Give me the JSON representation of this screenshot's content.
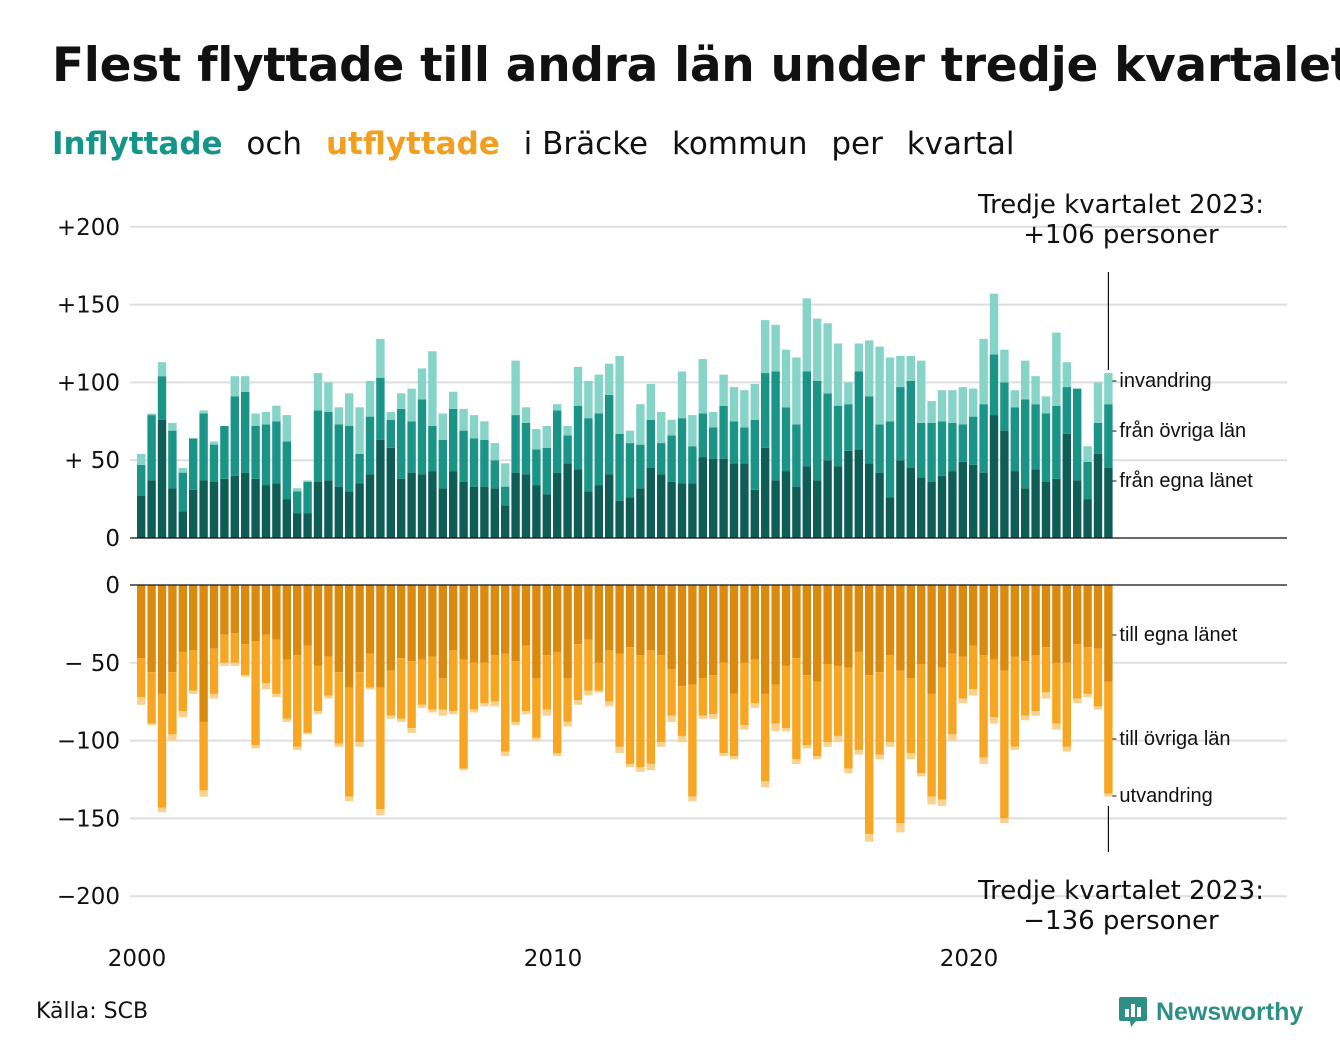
{
  "title": "Flest flyttade till andra län under tredje kvartalet",
  "subtitle": {
    "part1": "Inflyttade",
    "part2": "och",
    "part3": "utflyttade",
    "part4": "i Bräcke",
    "part5": "kommun",
    "part6": "per",
    "part7": "kvartal"
  },
  "annotation_top": {
    "line1": "Tredje kvartalet 2023:",
    "line2": "+106 personer"
  },
  "annotation_bottom": {
    "line1": "Tredje kvartalet 2023:",
    "line2": "−136 personer"
  },
  "source": "Källa: SCB",
  "logo": "Newsworthy",
  "colors": {
    "inflyttade_accent": "#14958a",
    "utflyttade_accent": "#f29e1e",
    "in_egna": "#0e5e57",
    "in_ovriga": "#1b9488",
    "in_invandring": "#86d3c8",
    "ut_egna": "#d98a0f",
    "ut_ovriga": "#f7a623",
    "ut_utvandring": "#fad28e"
  },
  "chart_data": [
    {
      "type": "bar",
      "stacked": true,
      "title": "Inflyttade",
      "x_start": "2000 Q1",
      "frequency": "quarter",
      "x_tick_labels": [
        "2000",
        "2010",
        "2020"
      ],
      "y_tick_labels": [
        "0",
        "+ 50",
        "+100",
        "+150",
        "+200"
      ],
      "ylim": [
        0,
        200
      ],
      "grid": true,
      "series": [
        {
          "name": "från egna länet",
          "values": [
            27,
            37,
            76,
            32,
            17,
            31,
            37,
            36,
            38,
            40,
            42,
            38,
            34,
            35,
            25,
            16,
            16,
            36,
            37,
            33,
            30,
            35,
            41,
            63,
            58,
            38,
            42,
            41,
            43,
            32,
            43,
            36,
            33,
            33,
            32,
            21,
            42,
            41,
            34,
            28,
            42,
            48,
            44,
            30,
            34,
            41,
            24,
            26,
            32,
            45,
            41,
            36,
            35,
            35,
            52,
            51,
            51,
            48,
            48,
            31,
            58,
            37,
            43,
            33,
            46,
            37,
            50,
            46,
            56,
            57,
            48,
            42,
            26,
            50,
            45,
            39,
            36,
            40,
            43,
            49,
            47,
            42,
            79,
            69,
            43,
            32,
            44,
            36,
            38,
            67,
            37,
            25,
            54,
            45
          ]
        },
        {
          "name": "från övriga län",
          "values": [
            20,
            42,
            28,
            37,
            25,
            33,
            43,
            24,
            34,
            51,
            52,
            34,
            39,
            40,
            37,
            14,
            20,
            46,
            44,
            40,
            42,
            19,
            37,
            40,
            18,
            45,
            33,
            48,
            29,
            31,
            40,
            33,
            31,
            30,
            18,
            12,
            37,
            33,
            23,
            30,
            40,
            18,
            41,
            47,
            46,
            51,
            43,
            35,
            28,
            31,
            20,
            30,
            42,
            24,
            28,
            20,
            34,
            27,
            23,
            45,
            48,
            70,
            41,
            40,
            61,
            64,
            43,
            39,
            30,
            50,
            43,
            31,
            49,
            47,
            56,
            35,
            38,
            35,
            31,
            24,
            31,
            44,
            39,
            31,
            41,
            57,
            42,
            44,
            47,
            30,
            59,
            24,
            20,
            41
          ]
        },
        {
          "name": "invandring",
          "values": [
            7,
            1,
            9,
            5,
            3,
            0,
            2,
            2,
            0,
            13,
            10,
            8,
            8,
            10,
            17,
            2,
            1,
            24,
            19,
            11,
            21,
            30,
            23,
            25,
            5,
            10,
            21,
            20,
            48,
            17,
            11,
            14,
            15,
            12,
            11,
            15,
            35,
            10,
            13,
            14,
            4,
            6,
            25,
            24,
            25,
            20,
            50,
            8,
            26,
            23,
            20,
            10,
            30,
            20,
            35,
            10,
            20,
            22,
            24,
            23,
            34,
            30,
            37,
            43,
            47,
            40,
            45,
            40,
            14,
            18,
            36,
            50,
            41,
            20,
            16,
            40,
            14,
            20,
            21,
            24,
            18,
            42,
            39,
            21,
            11,
            25,
            18,
            11,
            47,
            16,
            0,
            10,
            26,
            20
          ]
        }
      ],
      "annotations": [
        "invandring",
        "från övriga län",
        "från egna länet"
      ]
    },
    {
      "type": "bar",
      "stacked": true,
      "title": "Utflyttade",
      "x_start": "2000 Q1",
      "frequency": "quarter",
      "x_tick_labels": [
        "2000",
        "2010",
        "2020"
      ],
      "y_tick_labels": [
        "0",
        "− 50",
        "−100",
        "−150",
        "−200"
      ],
      "ylim": [
        -200,
        0
      ],
      "grid": true,
      "series": [
        {
          "name": "till egna länet",
          "values": [
            -47,
            -56,
            -70,
            -56,
            -43,
            -42,
            -88,
            -41,
            -32,
            -31,
            -38,
            -36,
            -32,
            -35,
            -48,
            -45,
            -39,
            -52,
            -46,
            -56,
            -66,
            -56,
            -44,
            -66,
            -55,
            -47,
            -49,
            -48,
            -46,
            -60,
            -42,
            -48,
            -50,
            -50,
            -45,
            -44,
            -49,
            -39,
            -60,
            -45,
            -43,
            -60,
            -38,
            -35,
            -50,
            -42,
            -44,
            -40,
            -45,
            -42,
            -45,
            -54,
            -65,
            -64,
            -60,
            -58,
            -50,
            -70,
            -50,
            -48,
            -70,
            -64,
            -52,
            -47,
            -58,
            -62,
            -51,
            -52,
            -53,
            -43,
            -58,
            -56,
            -45,
            -55,
            -60,
            -51,
            -70,
            -53,
            -44,
            -46,
            -39,
            -45,
            -48,
            -55,
            -46,
            -49,
            -45,
            -40,
            -50,
            -50,
            -38,
            -40,
            -41,
            -62
          ]
        },
        {
          "name": "till övriga län",
          "values": [
            -25,
            -33,
            -73,
            -40,
            -38,
            -26,
            -44,
            -29,
            -18,
            -19,
            -20,
            -67,
            -31,
            -35,
            -38,
            -59,
            -56,
            -29,
            -25,
            -46,
            -70,
            -45,
            -22,
            -78,
            -29,
            -39,
            -43,
            -29,
            -34,
            -20,
            -39,
            -70,
            -30,
            -26,
            -30,
            -63,
            -39,
            -42,
            -38,
            -35,
            -65,
            -28,
            -36,
            -33,
            -18,
            -33,
            -60,
            -75,
            -72,
            -73,
            -56,
            -30,
            -32,
            -72,
            -24,
            -25,
            -58,
            -40,
            -40,
            -28,
            -56,
            -25,
            -40,
            -65,
            -45,
            -48,
            -50,
            -45,
            -65,
            -63,
            -102,
            -53,
            -56,
            -98,
            -48,
            -70,
            -66,
            -85,
            -52,
            -27,
            -28,
            -66,
            -37,
            -95,
            -58,
            -35,
            -36,
            -29,
            -39,
            -54,
            -35,
            -30,
            -37,
            -72
          ]
        },
        {
          "name": "utvandring",
          "values": [
            -5,
            -1,
            -3,
            -4,
            -4,
            -2,
            -4,
            -3,
            -2,
            -2,
            -1,
            -2,
            -4,
            -2,
            -2,
            -2,
            -1,
            -2,
            -2,
            -2,
            -3,
            -3,
            -1,
            -4,
            -2,
            -2,
            -3,
            -2,
            -2,
            -4,
            -2,
            -1,
            -2,
            -2,
            -3,
            -3,
            -2,
            -2,
            -2,
            -4,
            -2,
            -3,
            -3,
            -3,
            -1,
            -3,
            -4,
            -2,
            -3,
            -4,
            -3,
            -4,
            -4,
            -3,
            -2,
            -3,
            -2,
            -2,
            -3,
            -3,
            -4,
            -5,
            -2,
            -3,
            -2,
            -2,
            -3,
            -4,
            -3,
            -3,
            -5,
            -3,
            -3,
            -6,
            -4,
            -2,
            -5,
            -4,
            -4,
            -3,
            -4,
            -4,
            -4,
            -3,
            -2,
            -3,
            -3,
            -4,
            -4,
            -3,
            -3,
            -2,
            -2,
            -2
          ]
        }
      ],
      "annotations": [
        "till egna länet",
        "till övriga län",
        "utvandring"
      ]
    }
  ]
}
